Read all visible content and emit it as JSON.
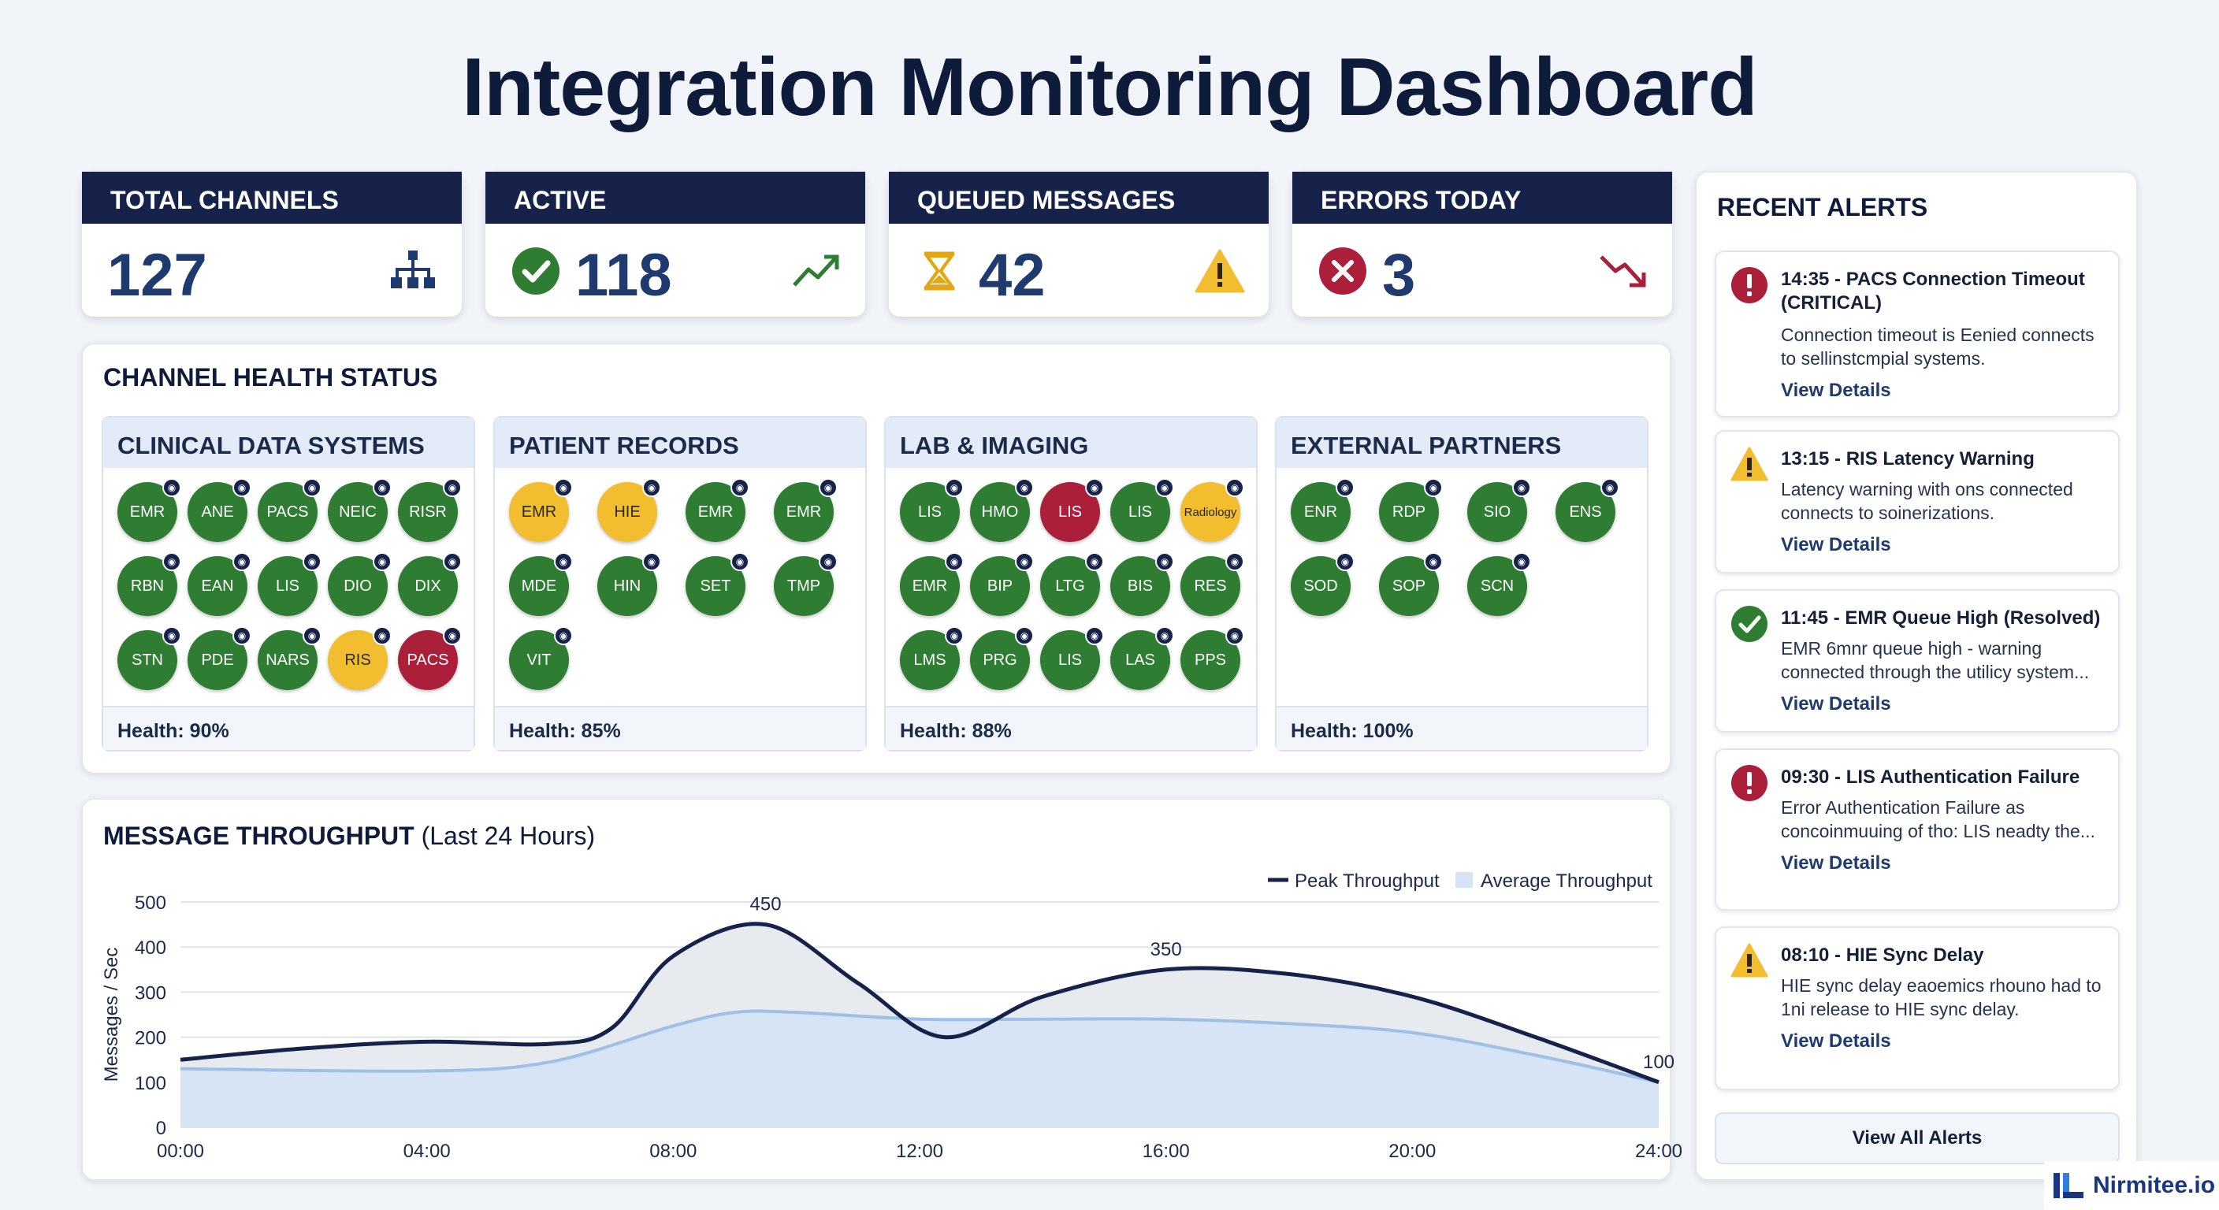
{
  "title": "Integration Monitoring Dashboard",
  "kpis": [
    {
      "label": "TOTAL CHANNELS",
      "value": "127",
      "icon": "network-icon"
    },
    {
      "label": "ACTIVE",
      "value": "118",
      "icon": "trend-up-icon",
      "lead_icon": "check-circle-icon"
    },
    {
      "label": "QUEUED MESSAGES",
      "value": "42",
      "icon": "warning-icon",
      "lead_icon": "hourglass-icon"
    },
    {
      "label": "ERRORS TODAY",
      "value": "3",
      "icon": "trend-down-icon",
      "lead_icon": "x-circle-icon"
    }
  ],
  "health": {
    "title": "CHANNEL HEALTH STATUS",
    "groups": [
      {
        "name": "CLINICAL DATA SYSTEMS",
        "health": "Health: 90%",
        "nodes": [
          {
            "label": "EMR",
            "status": "green"
          },
          {
            "label": "ANE",
            "status": "green"
          },
          {
            "label": "PACS",
            "status": "green"
          },
          {
            "label": "NEIC",
            "status": "green"
          },
          {
            "label": "RISR",
            "status": "green"
          },
          {
            "label": "RBN",
            "status": "green"
          },
          {
            "label": "EAN",
            "status": "green"
          },
          {
            "label": "LIS",
            "status": "green"
          },
          {
            "label": "DIO",
            "status": "green"
          },
          {
            "label": "DIX",
            "status": "green"
          },
          {
            "label": "STN",
            "status": "green"
          },
          {
            "label": "PDE",
            "status": "green"
          },
          {
            "label": "NARS",
            "status": "green"
          },
          {
            "label": "RIS",
            "status": "yellow"
          },
          {
            "label": "PACS",
            "status": "red"
          }
        ]
      },
      {
        "name": "PATIENT RECORDS",
        "health": "Health: 85%",
        "nodes": [
          {
            "label": "EMR",
            "status": "yellow"
          },
          {
            "label": "HIE",
            "status": "yellow"
          },
          {
            "label": "EMR",
            "status": "green"
          },
          {
            "label": "EMR",
            "status": "green"
          },
          {
            "label": "MDE",
            "status": "green"
          },
          {
            "label": "HIN",
            "status": "green"
          },
          {
            "label": "SET",
            "status": "green"
          },
          {
            "label": "TMP",
            "status": "green"
          },
          {
            "label": "VIT",
            "status": "green"
          }
        ]
      },
      {
        "name": "LAB & IMAGING",
        "health": "Health: 88%",
        "nodes": [
          {
            "label": "LIS",
            "status": "green"
          },
          {
            "label": "HMO",
            "status": "green"
          },
          {
            "label": "LIS",
            "status": "red"
          },
          {
            "label": "LIS",
            "status": "green"
          },
          {
            "label": "Radiology",
            "status": "yellow"
          },
          {
            "label": "EMR",
            "status": "green"
          },
          {
            "label": "BIP",
            "status": "green"
          },
          {
            "label": "LTG",
            "status": "green"
          },
          {
            "label": "BIS",
            "status": "green"
          },
          {
            "label": "RES",
            "status": "green"
          },
          {
            "label": "LMS",
            "status": "green"
          },
          {
            "label": "PRG",
            "status": "green"
          },
          {
            "label": "LIS",
            "status": "green"
          },
          {
            "label": "LAS",
            "status": "green"
          },
          {
            "label": "PPS",
            "status": "green"
          }
        ]
      },
      {
        "name": "EXTERNAL PARTNERS",
        "health": "Health: 100%",
        "nodes": [
          {
            "label": "ENR",
            "status": "green"
          },
          {
            "label": "RDP",
            "status": "green"
          },
          {
            "label": "SIO",
            "status": "green"
          },
          {
            "label": "ENS",
            "status": "green"
          },
          {
            "label": "SOD",
            "status": "green"
          },
          {
            "label": "SOP",
            "status": "green"
          },
          {
            "label": "SCN",
            "status": "green"
          }
        ]
      }
    ]
  },
  "throughput": {
    "title": "MESSAGE THROUGHPUT",
    "subtitle": "(Last 24 Hours)"
  },
  "chart_data": {
    "type": "area",
    "title": "MESSAGE THROUGHPUT (Last 24 Hours)",
    "xlabel": "",
    "ylabel": "Messages / Sec",
    "xlim": [
      0,
      24
    ],
    "ylim": [
      0,
      500
    ],
    "yticks": [
      "0",
      "100",
      "200",
      "300",
      "400",
      "500"
    ],
    "xticks": [
      "00:00",
      "04:00",
      "08:00",
      "12:00",
      "16:00",
      "20:00",
      "24:00"
    ],
    "legend": "top-right",
    "grid": true,
    "series": [
      {
        "name": "Peak Throughput",
        "color": "#16224a",
        "x": [
          0,
          2,
          4,
          6,
          7,
          8,
          9.5,
          11,
          12.4,
          14,
          16,
          18,
          20,
          22,
          24
        ],
        "y": [
          150,
          175,
          190,
          185,
          220,
          380,
          450,
          320,
          200,
          290,
          350,
          340,
          290,
          200,
          100
        ],
        "labels": {
          "9.5": "450",
          "16": "350",
          "24": "100"
        }
      },
      {
        "name": "Average Throughput",
        "color": "#9fbfe6",
        "x": [
          0,
          4,
          6,
          8,
          9,
          10,
          12,
          14,
          16,
          18,
          20,
          22,
          24
        ],
        "y": [
          130,
          125,
          145,
          225,
          255,
          255,
          240,
          240,
          240,
          230,
          210,
          160,
          100
        ]
      }
    ]
  },
  "alerts": {
    "title": "RECENT ALERTS",
    "link_label": "View Details",
    "view_all": "View All Alerts",
    "items": [
      {
        "level": "critical",
        "title": "14:35 - PACS Connection Timeout (CRITICAL)",
        "text": "Connection timeout is Eenied connects to sellinstcmpial systems."
      },
      {
        "level": "warning",
        "title": "13:15 - RIS Latency Warning",
        "text": "Latency warning with ons connected connects to soinerizations."
      },
      {
        "level": "resolved",
        "title": "11:45 - EMR Queue High (Resolved)",
        "text": "EMR 6mnr queue high - warning connected through the utilicy system..."
      },
      {
        "level": "critical",
        "title": "09:30 - LIS Authentication Failure",
        "text": "Error Authentication Failure as concoinmuuing of tho: LIS neadty the..."
      },
      {
        "level": "warning",
        "title": "08:10 - HIE Sync Delay",
        "text": "HIE sync delay eaoemics rhouno had to 1ni release to HIE sync delay."
      }
    ]
  },
  "brand": {
    "name": "Nirmitee.io"
  },
  "colors": {
    "navy": "#16224a",
    "green": "#2e7d32",
    "yellow": "#f2be2f",
    "red": "#ab1f3a"
  }
}
